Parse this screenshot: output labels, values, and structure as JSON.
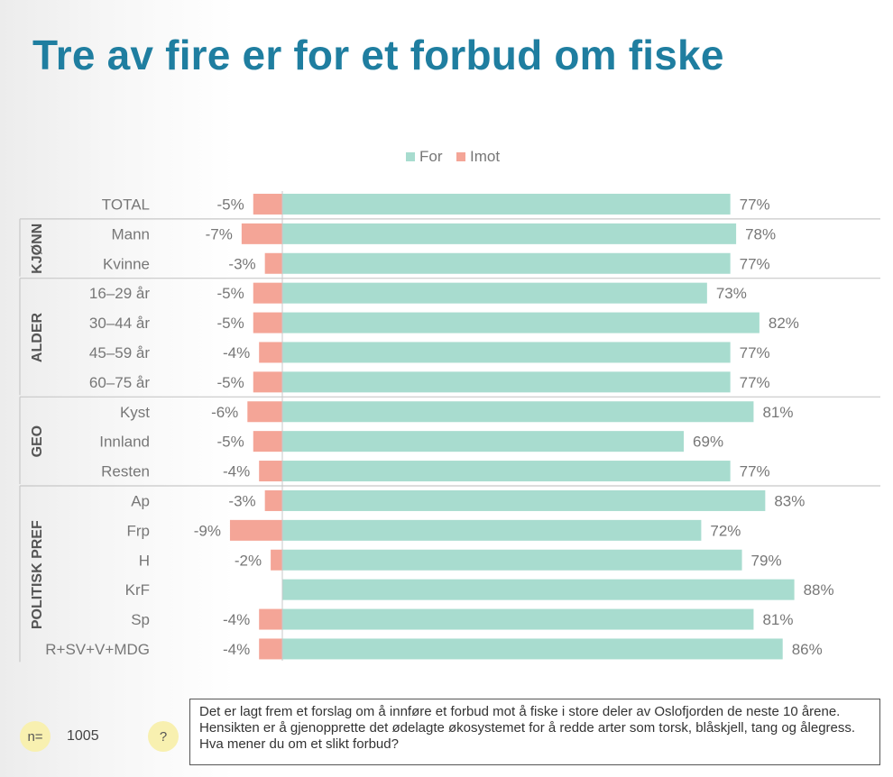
{
  "title": "Tre av fire er for et forbud om fiske",
  "legend": [
    {
      "label": "For",
      "color": "#a8dccf"
    },
    {
      "label": "Imot",
      "color": "#f4a597"
    }
  ],
  "sample": {
    "label": "n=",
    "value": "1005"
  },
  "help_icon": "?",
  "question_text": "Det er lagt frem et forslag om å innføre et forbud mot å fiske i store deler av Oslofjorden de neste 10 årene. Hensikten er å gjenopprette det ødelagte økosystemet for å redde arter som torsk, blåskjell, tang og ålegress. Hva mener du om et slikt forbud?",
  "chart_data": {
    "type": "bar",
    "orientation": "horizontal",
    "title": "Tre av fire er for et forbud om fiske",
    "series": [
      {
        "name": "For",
        "color": "#a8dccf"
      },
      {
        "name": "Imot",
        "color": "#f4a597"
      }
    ],
    "groups": [
      {
        "name": "",
        "rows": [
          {
            "label": "TOTAL",
            "for": 77,
            "imot": -5,
            "for_label": "77%",
            "imot_label": "-5%"
          }
        ]
      },
      {
        "name": "KJØNN",
        "rows": [
          {
            "label": "Mann",
            "for": 78,
            "imot": -7,
            "for_label": "78%",
            "imot_label": "-7%"
          },
          {
            "label": "Kvinne",
            "for": 77,
            "imot": -3,
            "for_label": "77%",
            "imot_label": "-3%"
          }
        ]
      },
      {
        "name": "ALDER",
        "rows": [
          {
            "label": "16–29 år",
            "for": 73,
            "imot": -5,
            "for_label": "73%",
            "imot_label": "-5%"
          },
          {
            "label": "30–44 år",
            "for": 82,
            "imot": -5,
            "for_label": "82%",
            "imot_label": "-5%"
          },
          {
            "label": "45–59 år",
            "for": 77,
            "imot": -4,
            "for_label": "77%",
            "imot_label": "-4%"
          },
          {
            "label": "60–75 år",
            "for": 77,
            "imot": -5,
            "for_label": "77%",
            "imot_label": "-5%"
          }
        ]
      },
      {
        "name": "GEO",
        "rows": [
          {
            "label": "Kyst",
            "for": 81,
            "imot": -6,
            "for_label": "81%",
            "imot_label": "-6%"
          },
          {
            "label": "Innland",
            "for": 69,
            "imot": -5,
            "for_label": "69%",
            "imot_label": "-5%"
          },
          {
            "label": "Resten",
            "for": 77,
            "imot": -4,
            "for_label": "77%",
            "imot_label": "-4%"
          }
        ]
      },
      {
        "name": "POLITISK PREF",
        "rows": [
          {
            "label": "Ap",
            "for": 83,
            "imot": -3,
            "for_label": "83%",
            "imot_label": "-3%"
          },
          {
            "label": "Frp",
            "for": 72,
            "imot": -9,
            "for_label": "72%",
            "imot_label": "-9%"
          },
          {
            "label": "H",
            "for": 79,
            "imot": -2,
            "for_label": "79%",
            "imot_label": "-2%"
          },
          {
            "label": "KrF",
            "for": 88,
            "imot": 0,
            "for_label": "88%",
            "imot_label": ""
          },
          {
            "label": "Sp",
            "for": 81,
            "imot": -4,
            "for_label": "81%",
            "imot_label": "-4%"
          },
          {
            "label": "R+SV+V+MDG",
            "for": 86,
            "imot": -4,
            "for_label": "86%",
            "imot_label": "-4%"
          }
        ]
      }
    ],
    "value_unit": "%",
    "xlim": [
      -10,
      100
    ]
  }
}
